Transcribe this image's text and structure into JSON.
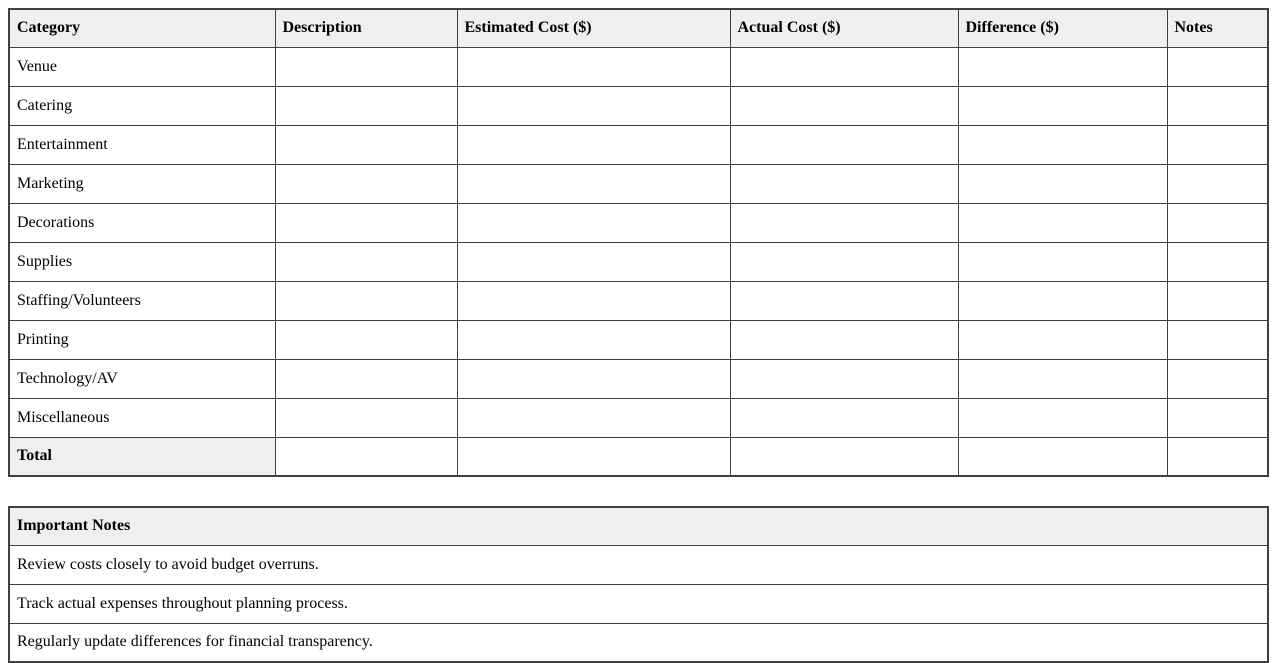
{
  "budget_table": {
    "headers": [
      "Category",
      "Description",
      "Estimated Cost ($)",
      "Actual Cost ($)",
      "Difference ($)",
      "Notes"
    ],
    "categories": [
      "Venue",
      "Catering",
      "Entertainment",
      "Marketing",
      "Decorations",
      "Supplies",
      "Staffing/Volunteers",
      "Printing",
      "Technology/AV",
      "Miscellaneous"
    ],
    "total_label": "Total",
    "empty_cell_value": ""
  },
  "notes_table": {
    "title": "Important Notes",
    "items": [
      "Review costs closely to avoid budget overruns.",
      "Track actual expenses throughout planning process.",
      "Regularly update differences for financial transparency."
    ]
  },
  "colors": {
    "header_bg": "#efefef",
    "border": "#404040",
    "text": "#000000"
  }
}
